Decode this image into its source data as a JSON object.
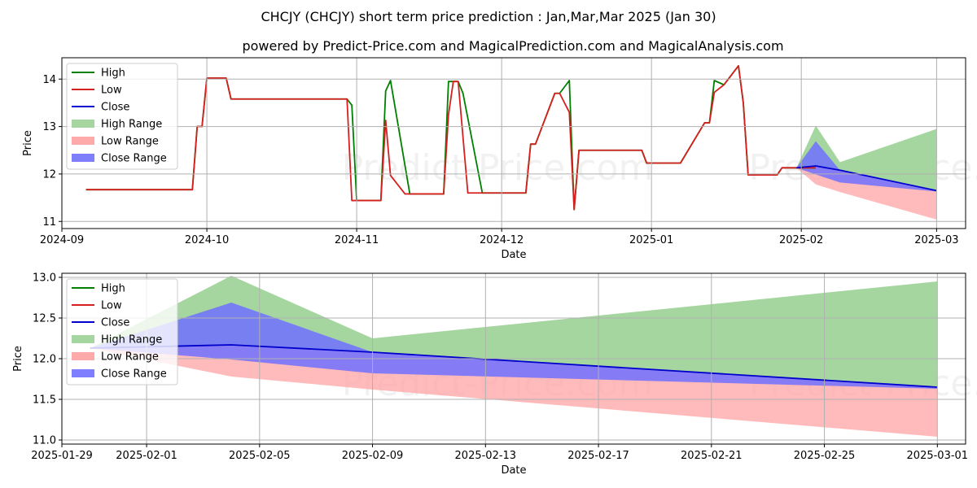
{
  "header": {
    "title": "CHCJY (CHCJY) short term price prediction : Jan,Mar,Mar 2025 (Jan 30)",
    "subtitle": "powered by Predict-Price.com and MagicalPrediction.com and MagicalAnalysis.com"
  },
  "watermark": "Predict-Price.com",
  "colors": {
    "high": "#008000",
    "low": "#d62020",
    "close": "#0000cc",
    "high_range": "#a6d6a0",
    "low_range": "#ffaaaa",
    "close_range": "#7070ff",
    "grid": "#b0b0b0"
  },
  "chart_data": [
    {
      "type": "line",
      "xlabel": "Date",
      "ylabel": "Price",
      "xlim": [
        "2024-09-01",
        "2025-03-07"
      ],
      "ylim": [
        10.85,
        14.45
      ],
      "xticks": [
        "2024-09",
        "2024-10",
        "2024-11",
        "2024-12",
        "2025-01",
        "2025-02",
        "2025-03"
      ],
      "yticks": [
        11,
        12,
        13,
        14
      ],
      "grid": true,
      "legend": "top-left",
      "legend_entries": [
        "High",
        "Low",
        "Close",
        "High Range",
        "Low Range",
        "Close Range"
      ],
      "series": [
        {
          "name": "High",
          "points": [
            [
              "2024-09-06",
              11.67
            ],
            [
              "2024-09-28",
              11.67
            ],
            [
              "2024-09-29",
              13.0
            ],
            [
              "2024-09-30",
              13.0
            ],
            [
              "2024-10-01",
              14.02
            ],
            [
              "2024-10-05",
              14.02
            ],
            [
              "2024-10-06",
              13.58
            ],
            [
              "2024-10-30",
              13.58
            ],
            [
              "2024-10-31",
              13.45
            ],
            [
              "2024-11-01",
              11.44
            ],
            [
              "2024-11-06",
              11.44
            ],
            [
              "2024-11-07",
              13.75
            ],
            [
              "2024-11-08",
              13.97
            ],
            [
              "2024-11-12",
              11.58
            ],
            [
              "2024-11-19",
              11.58
            ],
            [
              "2024-11-20",
              13.95
            ],
            [
              "2024-11-22",
              13.95
            ],
            [
              "2024-11-23",
              13.7
            ],
            [
              "2024-11-27",
              11.6
            ],
            [
              "2024-12-06",
              11.6
            ],
            [
              "2024-12-07",
              12.63
            ],
            [
              "2024-12-08",
              12.63
            ],
            [
              "2024-12-12",
              13.7
            ],
            [
              "2024-12-13",
              13.7
            ],
            [
              "2024-12-15",
              13.97
            ],
            [
              "2024-12-16",
              11.25
            ],
            [
              "2024-12-17",
              12.5
            ],
            [
              "2024-12-30",
              12.5
            ],
            [
              "2024-12-31",
              12.23
            ],
            [
              "2025-01-07",
              12.23
            ],
            [
              "2025-01-12",
              13.08
            ],
            [
              "2025-01-13",
              13.08
            ],
            [
              "2025-01-14",
              13.97
            ],
            [
              "2025-01-16",
              13.88
            ],
            [
              "2025-01-19",
              14.28
            ],
            [
              "2025-01-20",
              13.5
            ],
            [
              "2025-01-21",
              11.98
            ],
            [
              "2025-01-27",
              11.98
            ],
            [
              "2025-01-28",
              12.13
            ],
            [
              "2025-02-04",
              12.13
            ]
          ]
        },
        {
          "name": "Low",
          "points": [
            [
              "2024-09-06",
              11.67
            ],
            [
              "2024-09-28",
              11.67
            ],
            [
              "2024-09-29",
              13.0
            ],
            [
              "2024-09-30",
              13.0
            ],
            [
              "2024-10-01",
              14.02
            ],
            [
              "2024-10-05",
              14.02
            ],
            [
              "2024-10-06",
              13.58
            ],
            [
              "2024-10-30",
              13.58
            ],
            [
              "2024-10-31",
              11.44
            ],
            [
              "2024-11-06",
              11.44
            ],
            [
              "2024-11-07",
              13.13
            ],
            [
              "2024-11-08",
              11.97
            ],
            [
              "2024-11-11",
              11.58
            ],
            [
              "2024-11-19",
              11.58
            ],
            [
              "2024-11-20",
              13.25
            ],
            [
              "2024-11-21",
              13.95
            ],
            [
              "2024-11-22",
              13.95
            ],
            [
              "2024-11-24",
              11.6
            ],
            [
              "2024-12-06",
              11.6
            ],
            [
              "2024-12-07",
              12.63
            ],
            [
              "2024-12-08",
              12.63
            ],
            [
              "2024-12-12",
              13.7
            ],
            [
              "2024-12-13",
              13.7
            ],
            [
              "2024-12-15",
              13.3
            ],
            [
              "2024-12-16",
              11.25
            ],
            [
              "2024-12-17",
              12.5
            ],
            [
              "2024-12-30",
              12.5
            ],
            [
              "2024-12-31",
              12.23
            ],
            [
              "2025-01-07",
              12.23
            ],
            [
              "2025-01-12",
              13.08
            ],
            [
              "2025-01-13",
              13.08
            ],
            [
              "2025-01-14",
              13.72
            ],
            [
              "2025-01-16",
              13.88
            ],
            [
              "2025-01-19",
              14.28
            ],
            [
              "2025-01-20",
              13.5
            ],
            [
              "2025-01-21",
              11.98
            ],
            [
              "2025-01-27",
              11.98
            ],
            [
              "2025-01-28",
              12.13
            ],
            [
              "2025-02-04",
              12.13
            ]
          ]
        },
        {
          "name": "Close",
          "points": [
            [
              "2025-01-31",
              12.13
            ],
            [
              "2025-02-04",
              12.17
            ],
            [
              "2025-02-09",
              12.08
            ],
            [
              "2025-03-01",
              11.65
            ]
          ]
        },
        {
          "name": "High Range",
          "upper": [
            [
              "2025-01-31",
              12.13
            ],
            [
              "2025-02-04",
              13.02
            ],
            [
              "2025-02-09",
              12.25
            ],
            [
              "2025-03-01",
              12.95
            ]
          ],
          "lower": [
            [
              "2025-01-31",
              12.13
            ],
            [
              "2025-02-04",
              12.17
            ],
            [
              "2025-02-09",
              12.08
            ],
            [
              "2025-03-01",
              11.65
            ]
          ]
        },
        {
          "name": "Low Range",
          "upper": [
            [
              "2025-01-31",
              12.13
            ],
            [
              "2025-02-04",
              12.17
            ],
            [
              "2025-02-09",
              12.08
            ],
            [
              "2025-03-01",
              11.65
            ]
          ],
          "lower": [
            [
              "2025-01-31",
              12.13
            ],
            [
              "2025-02-04",
              11.78
            ],
            [
              "2025-02-09",
              11.62
            ],
            [
              "2025-03-01",
              11.04
            ]
          ]
        },
        {
          "name": "Close Range",
          "upper": [
            [
              "2025-01-31",
              12.13
            ],
            [
              "2025-02-04",
              12.69
            ],
            [
              "2025-02-09",
              12.08
            ],
            [
              "2025-03-01",
              11.65
            ]
          ],
          "lower": [
            [
              "2025-01-31",
              12.13
            ],
            [
              "2025-02-04",
              11.99
            ],
            [
              "2025-02-09",
              11.82
            ],
            [
              "2025-03-01",
              11.63
            ]
          ]
        }
      ]
    },
    {
      "type": "line",
      "xlabel": "Date",
      "ylabel": "Price",
      "xlim": [
        "2025-01-29",
        "2025-03-02"
      ],
      "ylim": [
        10.95,
        13.05
      ],
      "xticks": [
        "2025-01-29",
        "2025-02-01",
        "2025-02-05",
        "2025-02-09",
        "2025-02-13",
        "2025-02-17",
        "2025-02-21",
        "2025-02-25",
        "2025-03-01"
      ],
      "yticks": [
        11.0,
        11.5,
        12.0,
        12.5,
        13.0
      ],
      "grid": true,
      "legend": "top-left",
      "legend_entries": [
        "High",
        "Low",
        "Close",
        "High Range",
        "Low Range",
        "Close Range"
      ],
      "series": [
        {
          "name": "Close",
          "points": [
            [
              "2025-01-30",
              12.13
            ],
            [
              "2025-02-04",
              12.17
            ],
            [
              "2025-02-09",
              12.08
            ],
            [
              "2025-03-01",
              11.65
            ]
          ]
        },
        {
          "name": "High Range",
          "upper": [
            [
              "2025-01-30",
              12.13
            ],
            [
              "2025-02-04",
              13.02
            ],
            [
              "2025-02-09",
              12.25
            ],
            [
              "2025-03-01",
              12.95
            ]
          ],
          "lower": [
            [
              "2025-01-30",
              12.13
            ],
            [
              "2025-02-04",
              12.17
            ],
            [
              "2025-02-09",
              12.08
            ],
            [
              "2025-03-01",
              11.65
            ]
          ]
        },
        {
          "name": "Low Range",
          "upper": [
            [
              "2025-01-30",
              12.13
            ],
            [
              "2025-02-04",
              12.17
            ],
            [
              "2025-02-09",
              12.08
            ],
            [
              "2025-03-01",
              11.65
            ]
          ],
          "lower": [
            [
              "2025-01-30",
              12.13
            ],
            [
              "2025-02-04",
              11.78
            ],
            [
              "2025-02-09",
              11.62
            ],
            [
              "2025-03-01",
              11.04
            ]
          ]
        },
        {
          "name": "Close Range",
          "upper": [
            [
              "2025-01-30",
              12.13
            ],
            [
              "2025-02-04",
              12.69
            ],
            [
              "2025-02-09",
              12.08
            ],
            [
              "2025-03-01",
              11.65
            ]
          ],
          "lower": [
            [
              "2025-01-30",
              12.13
            ],
            [
              "2025-02-04",
              11.99
            ],
            [
              "2025-02-09",
              11.82
            ],
            [
              "2025-03-01",
              11.63
            ]
          ]
        }
      ]
    }
  ]
}
